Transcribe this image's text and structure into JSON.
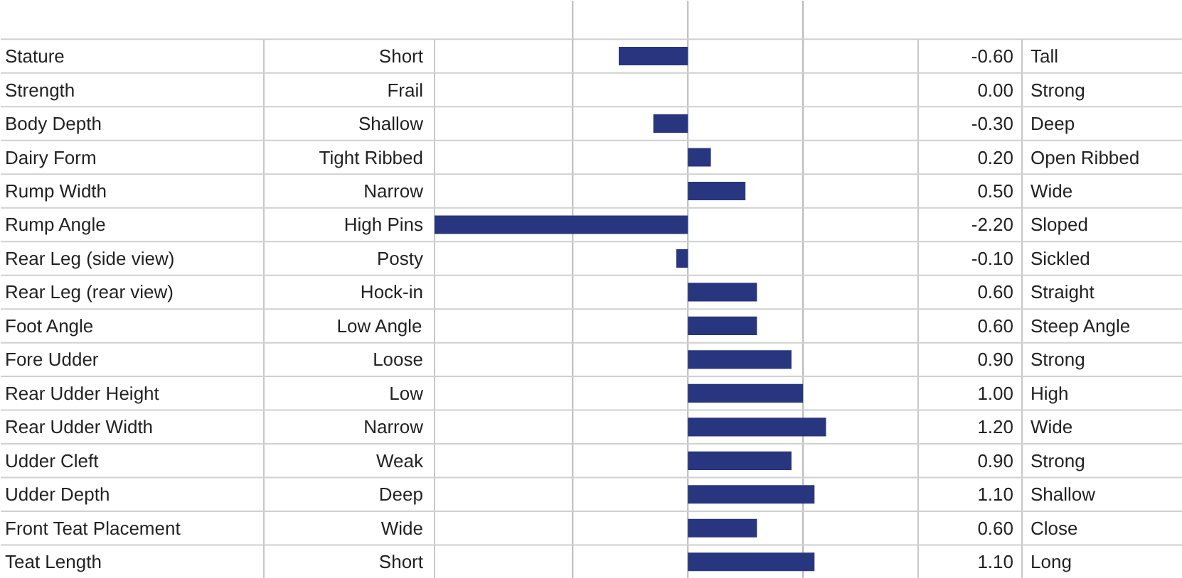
{
  "chart_data": {
    "type": "bar",
    "orientation": "horizontal",
    "color": "#27367f",
    "categories": [
      "Stature",
      "Strength",
      "Body Depth",
      "Dairy Form",
      "Rump Width",
      "Rump Angle",
      "Rear Leg (side view)",
      "Rear Leg (rear view)",
      "Foot Angle",
      "Fore Udder",
      "Rear Udder Height",
      "Rear Udder Width",
      "Udder Cleft",
      "Udder Depth",
      "Front Teat Placement",
      "Teat Length"
    ],
    "values": [
      -0.6,
      0.0,
      -0.3,
      0.2,
      0.5,
      -2.2,
      -0.1,
      0.6,
      0.6,
      0.9,
      1.0,
      1.2,
      0.9,
      1.1,
      0.6,
      1.1
    ],
    "value_labels": [
      "-0.60",
      "0.00",
      "-0.30",
      "0.20",
      "0.50",
      "-2.20",
      "-0.10",
      "0.60",
      "0.60",
      "0.90",
      "1.00",
      "1.20",
      "0.90",
      "1.10",
      "0.60",
      "1.10"
    ],
    "xlim": [
      -2.2,
      2
    ],
    "xticks": [
      {
        "value": -1,
        "label": null
      },
      {
        "value": 0,
        "label": null
      },
      {
        "value": 1,
        "label": null
      }
    ],
    "grid": "x",
    "tick_labels": false,
    "annotations": [
      "Short",
      "Tall",
      "Frail",
      "Strong",
      "Shallow",
      "Deep",
      "Tight Ribbed",
      "Open Ribbed",
      "Narrow",
      "Wide",
      "High Pins",
      "Sloped",
      "Posty",
      "Sickled",
      "Hock-in",
      "Straight",
      "Low Angle",
      "Steep Angle",
      "Loose",
      "Strong",
      "Low",
      "High",
      "Narrow",
      "Wide",
      "Weak",
      "Strong",
      "Deep",
      "Shallow",
      "Wide",
      "Close",
      "Short",
      "Long"
    ]
  }
}
